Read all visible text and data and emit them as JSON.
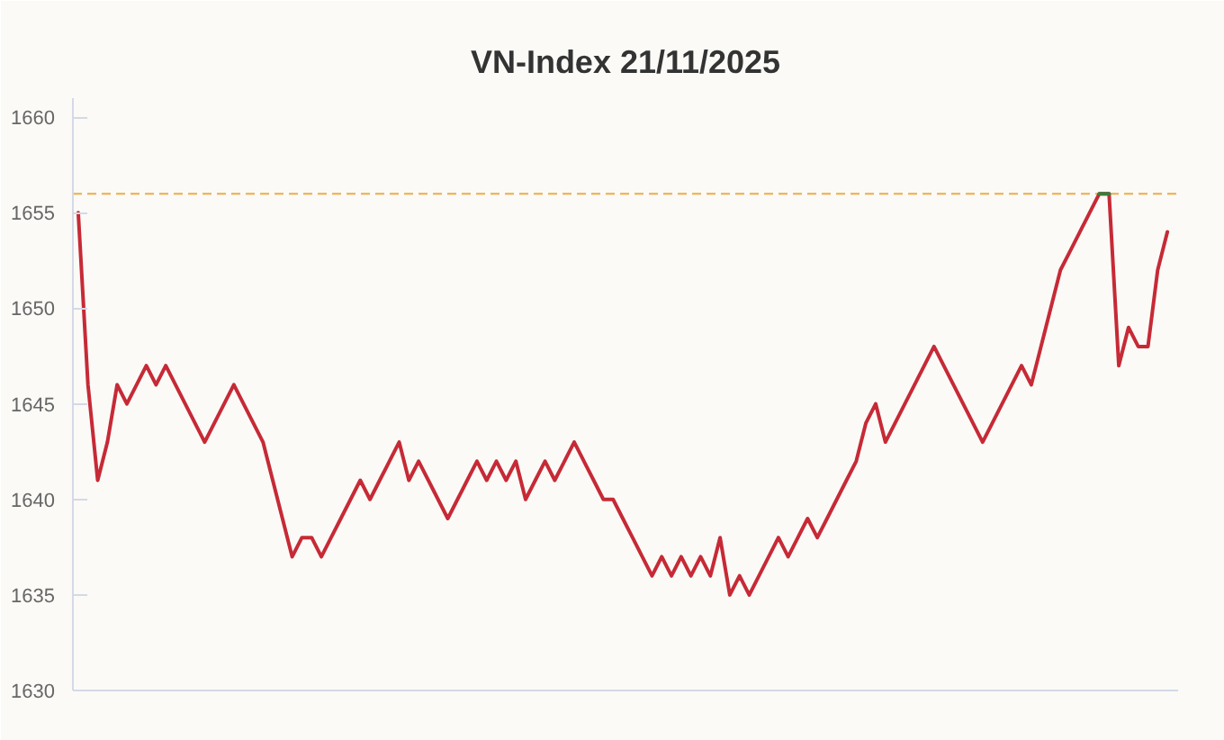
{
  "chart_data": {
    "type": "line",
    "title": "VN-Index 21/11/2025",
    "categories": [
      null,
      null,
      null,
      null,
      null,
      null,
      null,
      null,
      null,
      null,
      null,
      null,
      null,
      null,
      null,
      null,
      null,
      null,
      null,
      null,
      null,
      null,
      null,
      null,
      null,
      null,
      null,
      null,
      null,
      null,
      null,
      null,
      null,
      null,
      null,
      null,
      null,
      null,
      null,
      null,
      null,
      null,
      null,
      null,
      null,
      null,
      null,
      null,
      null,
      null,
      null,
      null,
      null,
      null,
      null,
      null,
      null,
      null,
      null,
      null,
      null,
      null,
      null,
      null,
      null,
      null,
      null,
      null,
      null,
      null,
      null,
      null,
      null,
      null,
      null,
      null,
      null,
      null,
      null,
      null,
      null,
      null,
      null,
      null,
      null,
      null,
      null,
      null,
      null,
      null,
      null,
      null,
      null,
      null,
      null,
      null,
      null,
      null,
      null,
      null,
      null,
      null,
      null,
      null,
      null,
      null,
      null,
      null,
      null,
      null,
      null,
      null,
      null
    ],
    "series": [
      {
        "color": "#c62a36",
        "values": [
          1655,
          1646,
          1641,
          1643,
          1646,
          1645,
          1646,
          1647,
          1646,
          1647,
          1646,
          1645,
          1644,
          1643,
          1644,
          1645,
          1646,
          1645,
          1644,
          1643,
          1641,
          1639,
          1637,
          1638,
          1638,
          1637,
          1638,
          1639,
          1640,
          1641,
          1640,
          1641,
          1642,
          1643,
          1641,
          1642,
          1641,
          1640,
          1639,
          1640,
          1641,
          1642,
          1641,
          1642,
          1641,
          1642,
          1640,
          1641,
          1642,
          1641,
          1642,
          1643,
          1642,
          1641,
          1640,
          1640,
          1639,
          1638,
          1637,
          1636,
          1637,
          1636,
          1637,
          1636,
          1637,
          1636,
          1638,
          1635,
          1636,
          1635,
          1636,
          1637,
          1638,
          1637,
          1638,
          1639,
          1638,
          1639,
          1640,
          1641,
          1642,
          1644,
          1645,
          1643,
          1644,
          1645,
          1646,
          1647,
          1648,
          1647,
          1646,
          1645,
          1644,
          1643,
          1644,
          1645,
          1646,
          1647,
          1646,
          1648,
          1650,
          1652,
          1653,
          1654,
          1655,
          1656,
          1656,
          1647,
          1649,
          1648,
          1648,
          1652,
          1654
        ]
      },
      {
        "color": "#3a7d3a",
        "values": [
          null,
          null,
          null,
          null,
          null,
          null,
          null,
          null,
          null,
          null,
          null,
          null,
          null,
          null,
          null,
          null,
          null,
          null,
          null,
          null,
          null,
          null,
          null,
          null,
          null,
          null,
          null,
          null,
          null,
          null,
          null,
          null,
          null,
          null,
          null,
          null,
          null,
          null,
          null,
          null,
          null,
          null,
          null,
          null,
          null,
          null,
          null,
          null,
          null,
          null,
          null,
          null,
          null,
          null,
          null,
          null,
          null,
          null,
          null,
          null,
          null,
          null,
          null,
          null,
          null,
          null,
          null,
          null,
          null,
          null,
          null,
          null,
          null,
          null,
          null,
          null,
          null,
          null,
          null,
          null,
          null,
          null,
          null,
          null,
          null,
          null,
          null,
          null,
          null,
          null,
          null,
          null,
          null,
          null,
          null,
          null,
          null,
          null,
          null,
          null,
          null,
          null,
          null,
          null,
          null,
          1656,
          1656,
          null,
          null,
          null,
          null,
          null,
          null
        ]
      }
    ],
    "ylim": [
      1630,
      1661
    ],
    "yticks": [
      1630,
      1635,
      1640,
      1645,
      1650,
      1655,
      1660
    ],
    "ref_lines": [
      {
        "axis": "y",
        "value": 1656,
        "color": "#eeac45",
        "line_style": "dashed"
      }
    ],
    "grid": false,
    "tick_labels": "y"
  }
}
